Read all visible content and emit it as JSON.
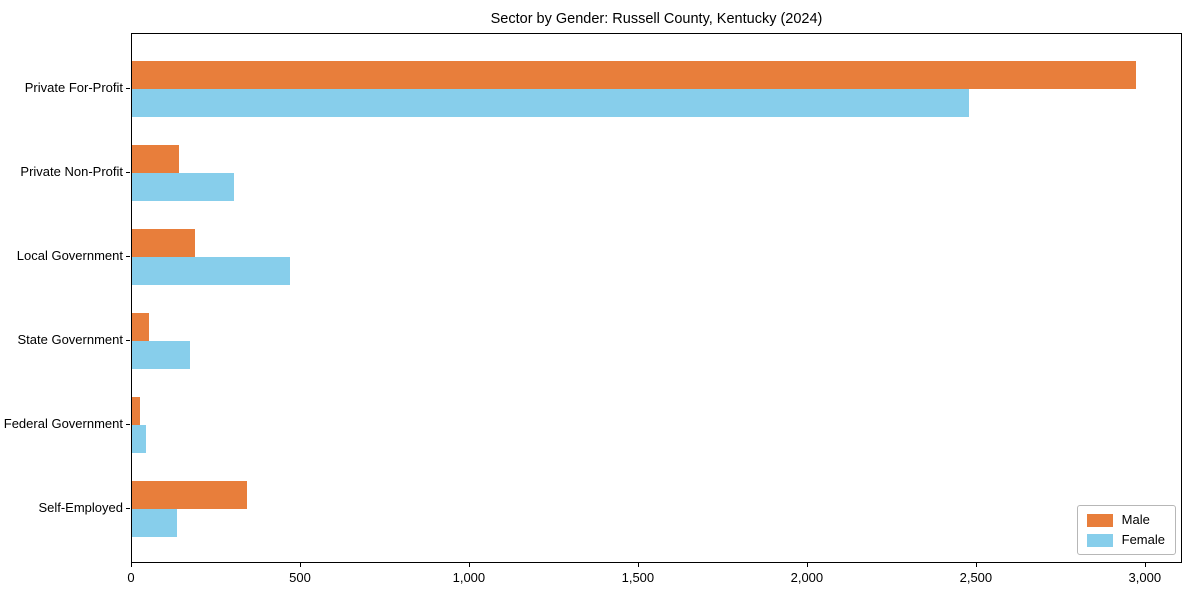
{
  "title": "Sector by Gender: Russell County, Kentucky (2024)",
  "chart_data": {
    "type": "bar",
    "orientation": "horizontal",
    "title": "Sector by Gender: Russell County, Kentucky (2024)",
    "categories": [
      "Private For-Profit",
      "Private Non-Profit",
      "Local Government",
      "State Government",
      "Federal Government",
      "Self-Employed"
    ],
    "series": [
      {
        "name": "Male",
        "color": "#E87E3B",
        "values": [
          2970,
          140,
          186,
          51,
          23,
          339
        ]
      },
      {
        "name": "Female",
        "color": "#87CEEB",
        "values": [
          2477,
          302,
          468,
          170,
          41,
          132
        ]
      }
    ],
    "xlabel": "",
    "ylabel": "",
    "xlim": [
      0,
      3110
    ],
    "xticks": {
      "values": [
        0,
        500,
        1000,
        1500,
        2000,
        2500,
        3000
      ],
      "labels": [
        "0",
        "500",
        "1,000",
        "1,500",
        "2,000",
        "2,500",
        "3,000"
      ]
    },
    "grid": false,
    "legend": {
      "position": "lower right",
      "entries": [
        "Male",
        "Female"
      ]
    }
  }
}
